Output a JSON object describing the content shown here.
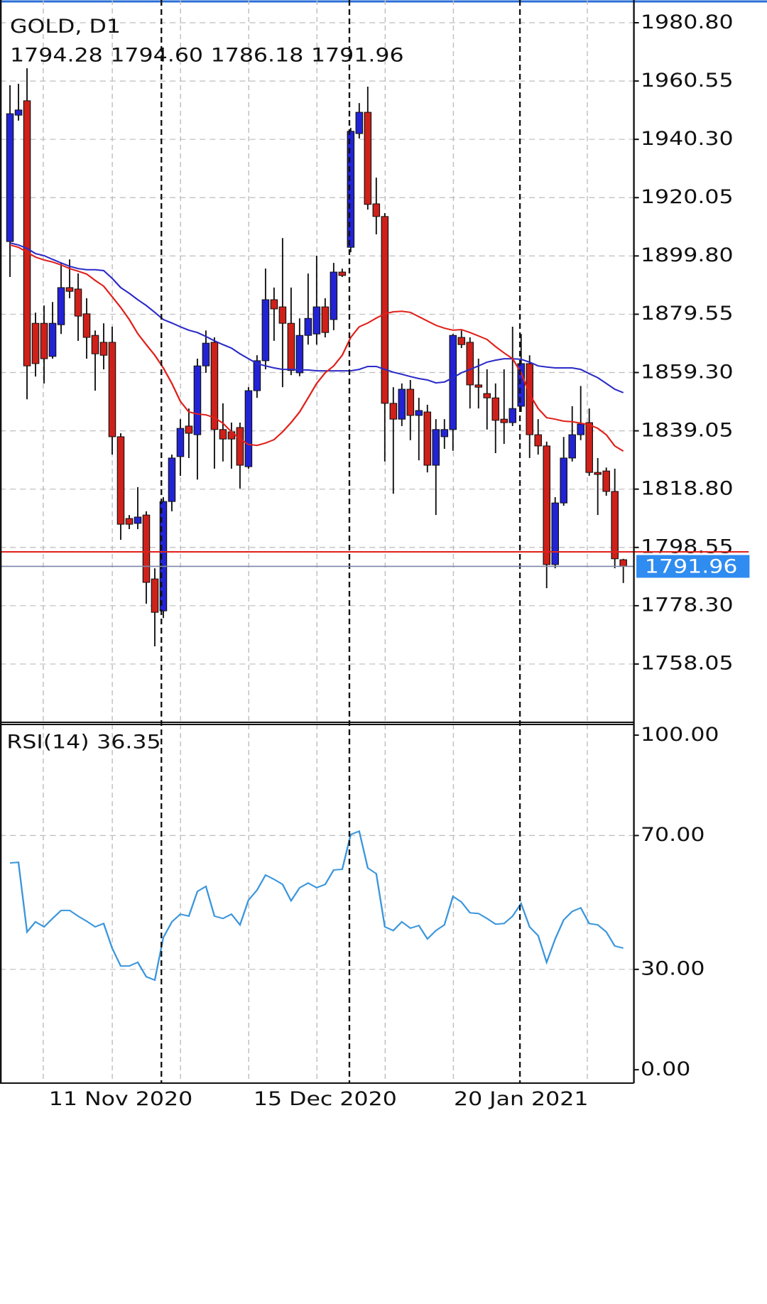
{
  "chart_data": [
    {
      "type": "candlestick",
      "title": "GOLD, D1",
      "categories": [
        null,
        null,
        null,
        null,
        null,
        null,
        null,
        null,
        null,
        null,
        null,
        null,
        null,
        "11 Nov 2020",
        null,
        null,
        null,
        null,
        null,
        null,
        null,
        null,
        null,
        null,
        null,
        null,
        null,
        null,
        null,
        null,
        null,
        null,
        null,
        null,
        null,
        null,
        null,
        "15 Dec 2020",
        null,
        null,
        null,
        null,
        null,
        null,
        null,
        null,
        null,
        null,
        null,
        null,
        null,
        null,
        null,
        null,
        null,
        null,
        null,
        null,
        null,
        null,
        "20 Jan 2021",
        null,
        null,
        null,
        null,
        null,
        null,
        null,
        null,
        null,
        null,
        null,
        null
      ],
      "open": [
        1904.8,
        1948.7,
        1953.7,
        1876.4,
        1876.4,
        1864.9,
        1875.9,
        1888.8,
        1888.3,
        1879.7,
        1872.2,
        1869.8,
        1869.8,
        1837.0,
        1808.6,
        1806.9,
        1809.8,
        1787.6,
        1776.5,
        1814.5,
        1830.1,
        1840.7,
        1837.7,
        1861.6,
        1869.8,
        1839.5,
        1838.7,
        1840.2,
        1826.6,
        1853.0,
        1863.4,
        1884.6,
        1882.1,
        1876.4,
        1859.2,
        1872.2,
        1872.7,
        1882.1,
        1877.7,
        1894.2,
        1902.8,
        1942.3,
        1949.7,
        1917.9,
        1913.5,
        1848.6,
        1843.1,
        1853.5,
        1844.4,
        1845.6,
        1827.1,
        1837.0,
        1839.5,
        1871.5,
        1869.8,
        1855.0,
        1852.0,
        1850.5,
        1843.1,
        1841.9,
        1847.6,
        1862.4,
        1837.7,
        1833.8,
        1792.6,
        1814.0,
        1829.6,
        1837.7,
        1841.9,
        1824.6,
        1825.1,
        1818.0,
        1794.28
      ],
      "high": [
        1959.1,
        1959.6,
        1965.0,
        1880.1,
        1882.6,
        1883.8,
        1897.4,
        1898.6,
        1893.7,
        1885.1,
        1873.9,
        1876.4,
        1875.2,
        1838.2,
        1809.8,
        1819.5,
        1811.1,
        1791.3,
        1816.0,
        1830.8,
        1843.1,
        1846.8,
        1864.1,
        1873.9,
        1871.5,
        1848.6,
        1841.9,
        1841.9,
        1854.2,
        1865.3,
        1895.4,
        1888.8,
        1906.0,
        1888.8,
        1878.1,
        1893.7,
        1899.9,
        1885.1,
        1897.4,
        1895.4,
        1944.3,
        1952.9,
        1958.6,
        1927.0,
        1914.7,
        1854.2,
        1855.5,
        1856.7,
        1850.5,
        1848.1,
        1843.1,
        1843.1,
        1872.7,
        1873.9,
        1871.5,
        1864.1,
        1860.4,
        1855.5,
        1860.4,
        1875.2,
        1872.7,
        1865.3,
        1843.1,
        1835.3,
        1816.0,
        1836.9,
        1847.6,
        1854.6,
        1846.8,
        1829.6,
        1826.3,
        1825.9,
        1794.6
      ],
      "low": [
        1892.5,
        1946.8,
        1850.0,
        1857.9,
        1855.5,
        1864.1,
        1872.7,
        1885.1,
        1870.3,
        1864.1,
        1853.0,
        1860.4,
        1830.8,
        1801.2,
        1804.9,
        1804.9,
        1779.0,
        1764.2,
        1774.0,
        1811.1,
        1823.4,
        1829.6,
        1822.1,
        1859.2,
        1825.9,
        1828.4,
        1825.9,
        1819.0,
        1825.9,
        1850.5,
        1860.4,
        1870.3,
        1854.2,
        1858.4,
        1858.0,
        1869.0,
        1869.0,
        1871.5,
        1874.0,
        1892.5,
        1901.1,
        1940.6,
        1915.9,
        1907.3,
        1828.4,
        1817.2,
        1840.7,
        1835.8,
        1828.8,
        1824.6,
        1809.8,
        1832.8,
        1832.1,
        1867.8,
        1846.8,
        1846.8,
        1839.5,
        1831.3,
        1834.5,
        1840.7,
        1845.6,
        1829.6,
        1830.8,
        1784.4,
        1791.3,
        1813.0,
        1828.4,
        1835.8,
        1823.4,
        1809.8,
        1816.5,
        1791.3,
        1786.18
      ],
      "close": [
        1949.2,
        1950.5,
        1861.6,
        1862.4,
        1864.1,
        1876.4,
        1888.8,
        1887.5,
        1878.9,
        1871.5,
        1865.8,
        1865.3,
        1837.0,
        1806.6,
        1806.6,
        1809.1,
        1786.4,
        1776.0,
        1814.5,
        1829.6,
        1839.9,
        1838.2,
        1861.6,
        1869.5,
        1839.5,
        1836.2,
        1836.2,
        1827.1,
        1853.0,
        1863.4,
        1884.6,
        1881.4,
        1876.4,
        1860.0,
        1872.2,
        1878.1,
        1882.1,
        1873.2,
        1894.2,
        1893.0,
        1943.1,
        1949.7,
        1917.7,
        1913.5,
        1848.6,
        1843.1,
        1853.5,
        1844.4,
        1846.1,
        1827.1,
        1839.5,
        1839.5,
        1872.2,
        1869.0,
        1855.0,
        1854.2,
        1850.5,
        1842.7,
        1841.9,
        1846.8,
        1862.4,
        1837.7,
        1833.8,
        1792.6,
        1814.0,
        1829.6,
        1837.7,
        1841.4,
        1824.6,
        1823.9,
        1818.0,
        1794.6,
        1791.96
      ],
      "last_labels": {
        "open": "1794.28",
        "high": "1794.60",
        "low": "1786.18",
        "close": "1791.96"
      },
      "up_color": "#2323d6",
      "down_color": "#d0201a",
      "series": [
        {
          "color": "#2a2ac8",
          "values": [
            1904.3,
            1903.6,
            1902.4,
            1900.6,
            1899.9,
            1898.6,
            1897.4,
            1896.2,
            1895.4,
            1895.0,
            1895.0,
            1894.7,
            1892.0,
            1888.8,
            1886.8,
            1884.6,
            1882.6,
            1880.2,
            1877.7,
            1876.5,
            1875.2,
            1874.0,
            1873.2,
            1871.8,
            1870.3,
            1869.0,
            1867.8,
            1865.8,
            1864.1,
            1862.4,
            1861.6,
            1860.9,
            1860.4,
            1860.4,
            1860.2,
            1860.2,
            1859.9,
            1859.9,
            1859.9,
            1859.9,
            1859.9,
            1860.4,
            1861.4,
            1861.4,
            1860.4,
            1859.4,
            1858.7,
            1857.9,
            1857.2,
            1856.7,
            1855.7,
            1856.0,
            1857.5,
            1859.2,
            1860.4,
            1861.6,
            1862.9,
            1863.6,
            1864.1,
            1864.1,
            1863.9,
            1862.9,
            1861.6,
            1861.2,
            1860.9,
            1860.9,
            1860.9,
            1860.4,
            1858.9,
            1857.5,
            1855.5,
            1853.5,
            1852.3
          ]
        },
        {
          "color": "#e0201a",
          "values": [
            1903.6,
            1902.8,
            1901.1,
            1899.4,
            1898.4,
            1897.7,
            1896.7,
            1895.4,
            1894.5,
            1893.5,
            1891.3,
            1889.3,
            1885.6,
            1881.9,
            1877.7,
            1872.8,
            1869.0,
            1865.3,
            1860.9,
            1855.5,
            1849.3,
            1845.6,
            1844.9,
            1844.6,
            1843.6,
            1841.7,
            1838.7,
            1836.2,
            1834.3,
            1834.0,
            1834.8,
            1836.0,
            1838.7,
            1841.9,
            1845.6,
            1850.5,
            1855.5,
            1859.2,
            1861.6,
            1865.3,
            1871.5,
            1875.2,
            1876.5,
            1878.2,
            1879.7,
            1880.4,
            1880.6,
            1880.2,
            1878.7,
            1877.2,
            1875.7,
            1874.7,
            1874.0,
            1874.2,
            1873.2,
            1872.0,
            1870.8,
            1868.3,
            1866.1,
            1864.1,
            1859.2,
            1851.8,
            1846.8,
            1843.6,
            1843.1,
            1842.4,
            1842.2,
            1841.7,
            1841.2,
            1839.9,
            1837.7,
            1833.8,
            1832.0
          ]
        }
      ],
      "ask": 1797.0,
      "ask_color": "#e0201a",
      "bid_color": "#7a86a8",
      "tag_color": "#2f8cf0",
      "ylim": [
        1737.8,
        1988.7
      ],
      "yticks": [
        {
          "value": 1980.8,
          "label": "1980.80"
        },
        {
          "value": 1960.55,
          "label": "1960.55"
        },
        {
          "value": 1940.3,
          "label": "1940.30"
        },
        {
          "value": 1920.05,
          "label": "1920.05"
        },
        {
          "value": 1899.8,
          "label": "1899.80"
        },
        {
          "value": 1879.55,
          "label": "1879.55"
        },
        {
          "value": 1859.3,
          "label": "1859.30"
        },
        {
          "value": 1839.05,
          "label": "1839.05"
        },
        {
          "value": 1818.8,
          "label": "1818.80"
        },
        {
          "value": 1798.55,
          "label": "1798.55"
        },
        {
          "value": 1778.3,
          "label": "1778.30"
        },
        {
          "value": 1758.05,
          "label": "1758.05"
        }
      ],
      "grid": true
    },
    {
      "type": "line",
      "title": "RSI(14)",
      "series": [
        {
          "color": "#3a96dd",
          "values": [
            61.8,
            62.0,
            41.2,
            44.2,
            42.7,
            45.2,
            47.6,
            47.6,
            45.9,
            44.4,
            42.7,
            43.7,
            36.3,
            31.0,
            31.0,
            32.1,
            27.8,
            26.8,
            39.5,
            44.2,
            46.5,
            45.9,
            53.3,
            54.8,
            45.9,
            45.2,
            46.5,
            43.3,
            50.7,
            53.7,
            58.2,
            56.9,
            55.4,
            50.5,
            54.4,
            55.8,
            54.4,
            55.4,
            59.7,
            59.9,
            70.3,
            71.3,
            60.3,
            58.6,
            42.7,
            41.6,
            44.2,
            42.3,
            43.1,
            39.1,
            41.6,
            43.3,
            51.8,
            50.1,
            46.9,
            46.7,
            45.2,
            43.5,
            43.7,
            45.9,
            49.7,
            42.7,
            40.1,
            32.1,
            39.1,
            44.8,
            47.3,
            48.4,
            43.7,
            43.3,
            41.2,
            37.0,
            36.35
          ]
        }
      ],
      "ylim": [
        -4,
        103.2
      ],
      "yticks": [
        {
          "value": 100,
          "label": "100.00"
        },
        {
          "value": 70,
          "label": "70.00"
        },
        {
          "value": 30,
          "label": "30.00"
        },
        {
          "value": 0,
          "label": "0.00"
        }
      ],
      "grid": true
    }
  ]
}
